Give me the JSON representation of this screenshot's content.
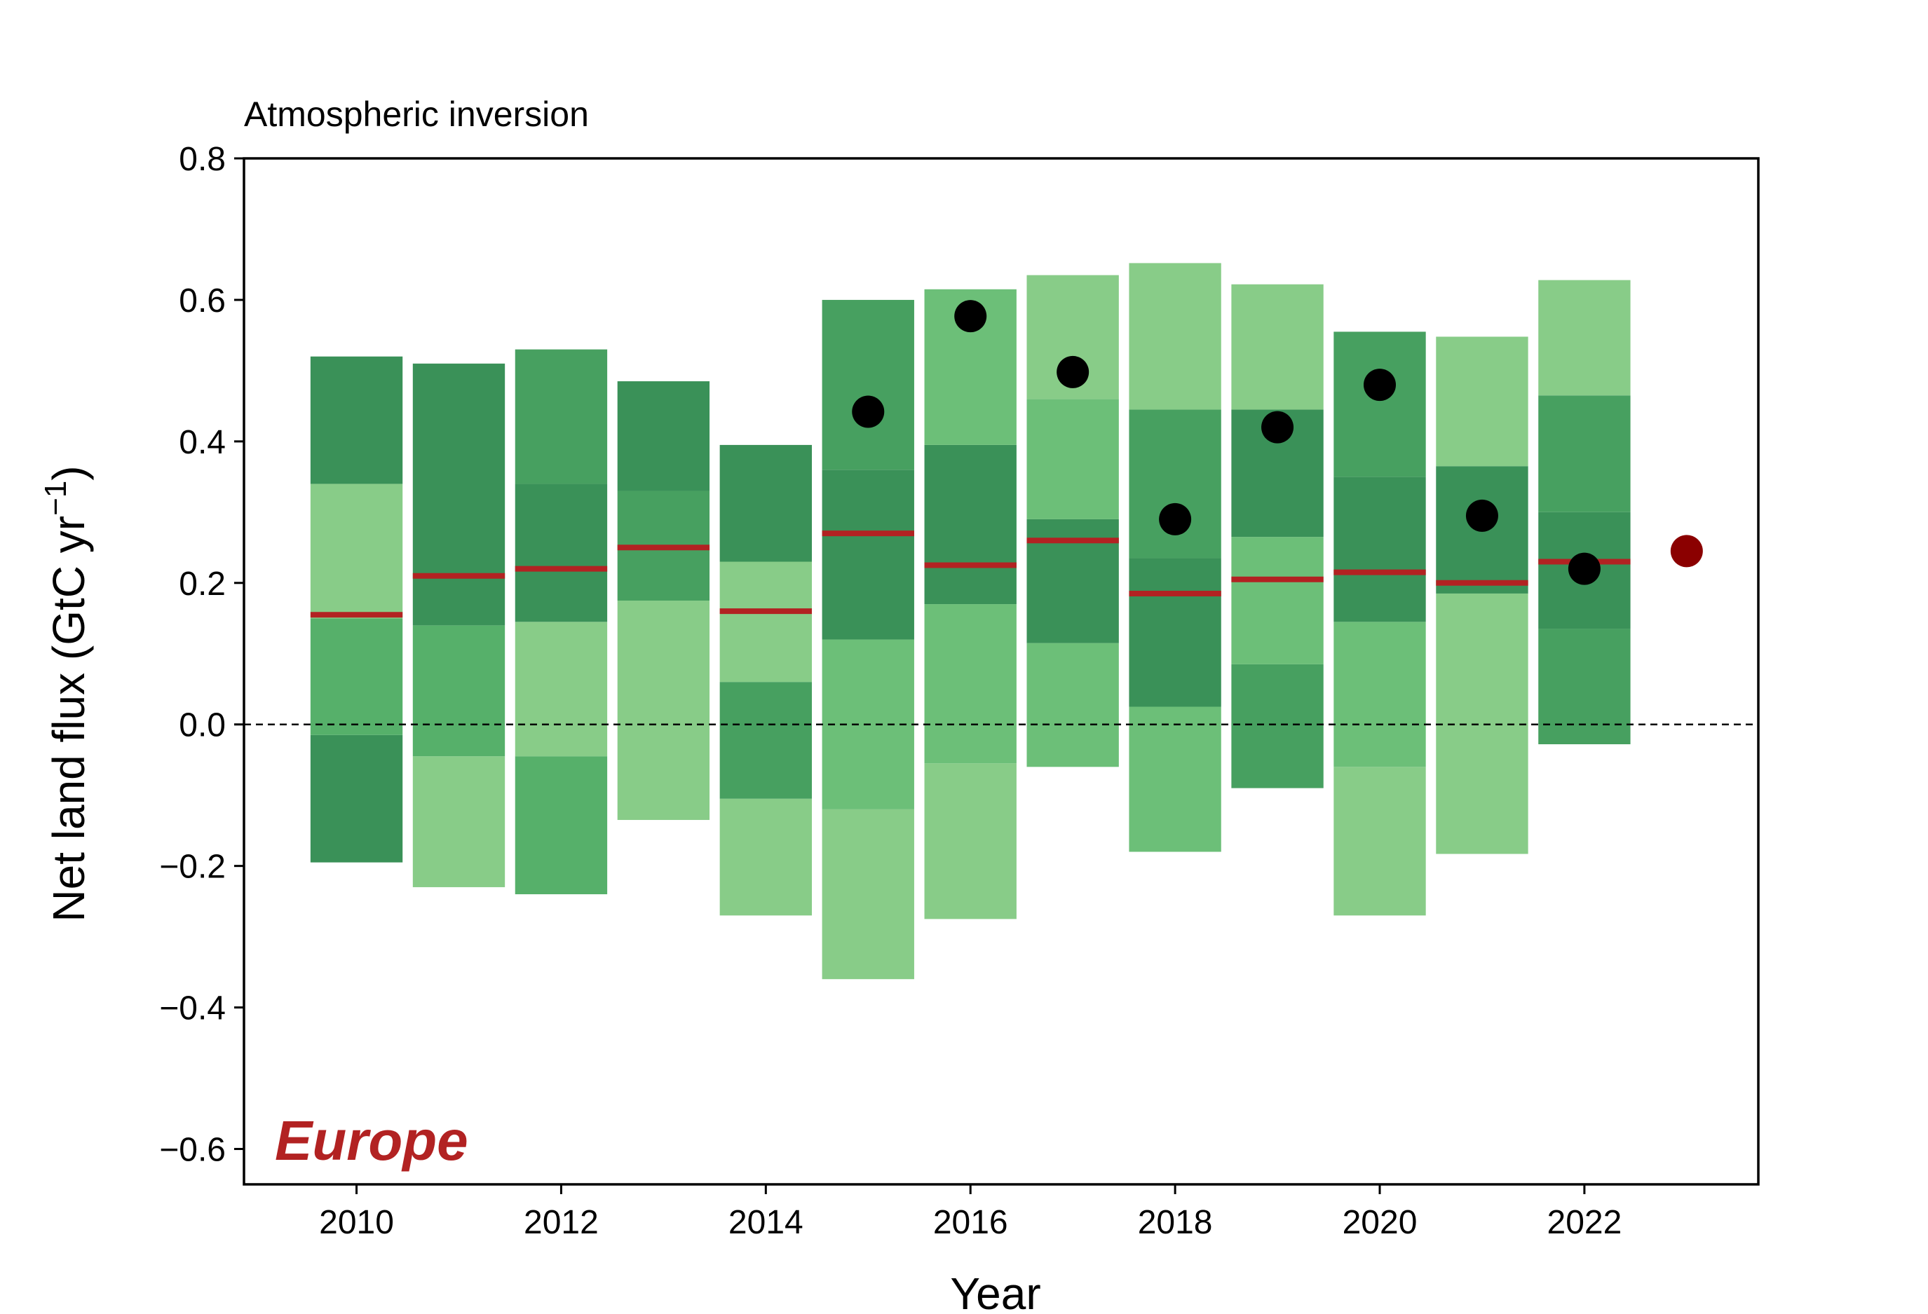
{
  "chart_data": {
    "type": "bar",
    "title": "Atmospheric inversion",
    "region_label": "Europe",
    "xlabel": "Year",
    "ylabel_main": "Net land flux (GtC yr",
    "ylabel_sup": "−1",
    "ylabel_close": ")",
    "xlim": [
      2008.9,
      2023.7
    ],
    "ylim": [
      -0.65,
      0.8
    ],
    "xticks": [
      2010,
      2012,
      2014,
      2016,
      2018,
      2020,
      2022
    ],
    "xtick_labels": [
      "2010",
      "2012",
      "2014",
      "2016",
      "2018",
      "2020",
      "2022"
    ],
    "yticks": [
      -0.6,
      -0.4,
      -0.2,
      0.0,
      0.2,
      0.4,
      0.6,
      0.8
    ],
    "ytick_labels": [
      "−0.6",
      "−0.4",
      "−0.2",
      "0.0",
      "0.2",
      "0.4",
      "0.6",
      "0.8"
    ],
    "zero_line": true,
    "bar_width": 0.9,
    "colors": {
      "shade_1": "#88cc88",
      "shade_2": "#6cbf78",
      "shade_3": "#56b06a",
      "shade_4": "#47a060",
      "shade_5": "#3a9158",
      "median": "#b22222",
      "observed": "#000000",
      "latest": "#8b0000",
      "region": "#b22222"
    },
    "bars": [
      {
        "year": 2010,
        "median": 0.155,
        "segments": [
          {
            "from": -0.195,
            "to": -0.015,
            "shade": "shade_5"
          },
          {
            "from": -0.015,
            "to": 0.15,
            "shade": "shade_3"
          },
          {
            "from": 0.15,
            "to": 0.34,
            "shade": "shade_1"
          },
          {
            "from": 0.34,
            "to": 0.52,
            "shade": "shade_5"
          }
        ]
      },
      {
        "year": 2011,
        "median": 0.21,
        "segments": [
          {
            "from": -0.23,
            "to": -0.045,
            "shade": "shade_1"
          },
          {
            "from": -0.045,
            "to": 0.14,
            "shade": "shade_3"
          },
          {
            "from": 0.14,
            "to": 0.51,
            "shade": "shade_5"
          }
        ]
      },
      {
        "year": 2012,
        "median": 0.22,
        "segments": [
          {
            "from": -0.24,
            "to": -0.045,
            "shade": "shade_3"
          },
          {
            "from": -0.045,
            "to": 0.145,
            "shade": "shade_1"
          },
          {
            "from": 0.145,
            "to": 0.34,
            "shade": "shade_5"
          },
          {
            "from": 0.34,
            "to": 0.53,
            "shade": "shade_4"
          }
        ]
      },
      {
        "year": 2013,
        "median": 0.25,
        "segments": [
          {
            "from": -0.135,
            "to": 0.175,
            "shade": "shade_1"
          },
          {
            "from": 0.175,
            "to": 0.33,
            "shade": "shade_4"
          },
          {
            "from": 0.33,
            "to": 0.485,
            "shade": "shade_5"
          }
        ]
      },
      {
        "year": 2014,
        "median": 0.16,
        "segments": [
          {
            "from": -0.27,
            "to": -0.105,
            "shade": "shade_1"
          },
          {
            "from": -0.105,
            "to": 0.06,
            "shade": "shade_4"
          },
          {
            "from": 0.06,
            "to": 0.23,
            "shade": "shade_1"
          },
          {
            "from": 0.23,
            "to": 0.395,
            "shade": "shade_5"
          }
        ]
      },
      {
        "year": 2015,
        "median": 0.27,
        "segments": [
          {
            "from": -0.36,
            "to": -0.12,
            "shade": "shade_1"
          },
          {
            "from": -0.12,
            "to": 0.12,
            "shade": "shade_2"
          },
          {
            "from": 0.12,
            "to": 0.36,
            "shade": "shade_5"
          },
          {
            "from": 0.36,
            "to": 0.6,
            "shade": "shade_4"
          }
        ]
      },
      {
        "year": 2016,
        "median": 0.225,
        "segments": [
          {
            "from": -0.275,
            "to": -0.055,
            "shade": "shade_1"
          },
          {
            "from": -0.055,
            "to": 0.17,
            "shade": "shade_2"
          },
          {
            "from": 0.17,
            "to": 0.395,
            "shade": "shade_5"
          },
          {
            "from": 0.395,
            "to": 0.615,
            "shade": "shade_2"
          }
        ]
      },
      {
        "year": 2017,
        "median": 0.26,
        "segments": [
          {
            "from": -0.06,
            "to": 0.115,
            "shade": "shade_2"
          },
          {
            "from": 0.115,
            "to": 0.29,
            "shade": "shade_5"
          },
          {
            "from": 0.29,
            "to": 0.46,
            "shade": "shade_2"
          },
          {
            "from": 0.46,
            "to": 0.635,
            "shade": "shade_1"
          }
        ]
      },
      {
        "year": 2018,
        "median": 0.185,
        "segments": [
          {
            "from": -0.18,
            "to": 0.025,
            "shade": "shade_2"
          },
          {
            "from": 0.025,
            "to": 0.235,
            "shade": "shade_5"
          },
          {
            "from": 0.235,
            "to": 0.445,
            "shade": "shade_4"
          },
          {
            "from": 0.445,
            "to": 0.652,
            "shade": "shade_1"
          }
        ]
      },
      {
        "year": 2019,
        "median": 0.205,
        "segments": [
          {
            "from": -0.09,
            "to": 0.085,
            "shade": "shade_4"
          },
          {
            "from": 0.085,
            "to": 0.265,
            "shade": "shade_2"
          },
          {
            "from": 0.265,
            "to": 0.445,
            "shade": "shade_5"
          },
          {
            "from": 0.445,
            "to": 0.622,
            "shade": "shade_1"
          }
        ]
      },
      {
        "year": 2020,
        "median": 0.215,
        "segments": [
          {
            "from": -0.27,
            "to": -0.06,
            "shade": "shade_1"
          },
          {
            "from": -0.06,
            "to": 0.145,
            "shade": "shade_2"
          },
          {
            "from": 0.145,
            "to": 0.35,
            "shade": "shade_5"
          },
          {
            "from": 0.35,
            "to": 0.555,
            "shade": "shade_4"
          }
        ]
      },
      {
        "year": 2021,
        "median": 0.2,
        "segments": [
          {
            "from": -0.183,
            "to": 0.185,
            "shade": "shade_1"
          },
          {
            "from": 0.185,
            "to": 0.365,
            "shade": "shade_5"
          },
          {
            "from": 0.365,
            "to": 0.548,
            "shade": "shade_1"
          }
        ]
      },
      {
        "year": 2022,
        "median": 0.23,
        "segments": [
          {
            "from": -0.028,
            "to": 0.135,
            "shade": "shade_4"
          },
          {
            "from": 0.135,
            "to": 0.3,
            "shade": "shade_5"
          },
          {
            "from": 0.3,
            "to": 0.465,
            "shade": "shade_4"
          },
          {
            "from": 0.465,
            "to": 0.628,
            "shade": "shade_1"
          }
        ]
      }
    ],
    "observed_points": [
      {
        "x": 2015,
        "y": 0.442
      },
      {
        "x": 2016,
        "y": 0.577
      },
      {
        "x": 2017,
        "y": 0.498
      },
      {
        "x": 2018,
        "y": 0.29
      },
      {
        "x": 2019,
        "y": 0.42
      },
      {
        "x": 2020,
        "y": 0.48
      },
      {
        "x": 2021,
        "y": 0.295
      },
      {
        "x": 2022,
        "y": 0.22
      }
    ],
    "latest_point": {
      "x": 2023,
      "y": 0.245
    }
  }
}
